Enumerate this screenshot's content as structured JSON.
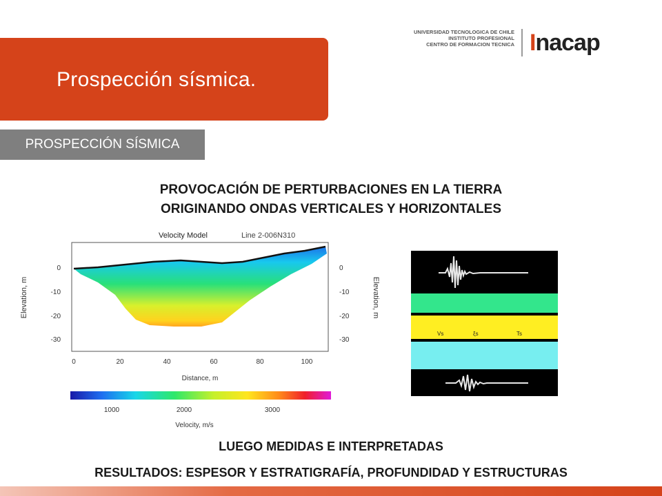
{
  "header": {
    "title": "Prospección sísmica.",
    "logo_institution_lines": [
      "UNIVERSIDAD TECNOLOGICA DE CHILE",
      "INSTITUTO PROFESIONAL",
      "CENTRO DE FORMACION TECNICA"
    ],
    "logo_brand": "nacap",
    "logo_brand_mark": "I"
  },
  "section_tag": "PROSPECCIÓN SÍSMICA",
  "heading_lines": [
    "PROVOCACIÓN DE PERTURBACIONES EN LA TIERRA",
    "ORIGINANDO ONDAS VERTICALES Y HORIZONTALES"
  ],
  "figure_velocity": {
    "title": "Velocity Model",
    "subtitle": "Line 2-006N310",
    "xlabel": "Distance, m",
    "ylabel": "Elevation, m",
    "ylabel_right": "Elevation, m",
    "x_ticks": [
      "0",
      "20",
      "40",
      "60",
      "80",
      "100"
    ],
    "y_ticks": [
      "0",
      "-10",
      "-20",
      "-30"
    ],
    "colorbar_label": "Velocity, m/s",
    "colorbar_ticks": [
      "1000",
      "2000",
      "3000"
    ]
  },
  "figure_layers": {
    "labels": [
      "Vs",
      "ξs",
      "Ts"
    ],
    "colors": {
      "top": "#33e68c",
      "middle": "#ffee22",
      "bottom": "#77eef0",
      "background": "#000000"
    }
  },
  "captions": {
    "line1": "LUEGO MEDIDAS E INTERPRETADAS",
    "line2": "RESULTADOS: ESPESOR Y ESTRATIGRAFÍA, PROFUNDIDAD Y ESTRUCTURAS"
  },
  "colors": {
    "accent": "#d5431a",
    "tag_gray": "#7f7f7f"
  }
}
